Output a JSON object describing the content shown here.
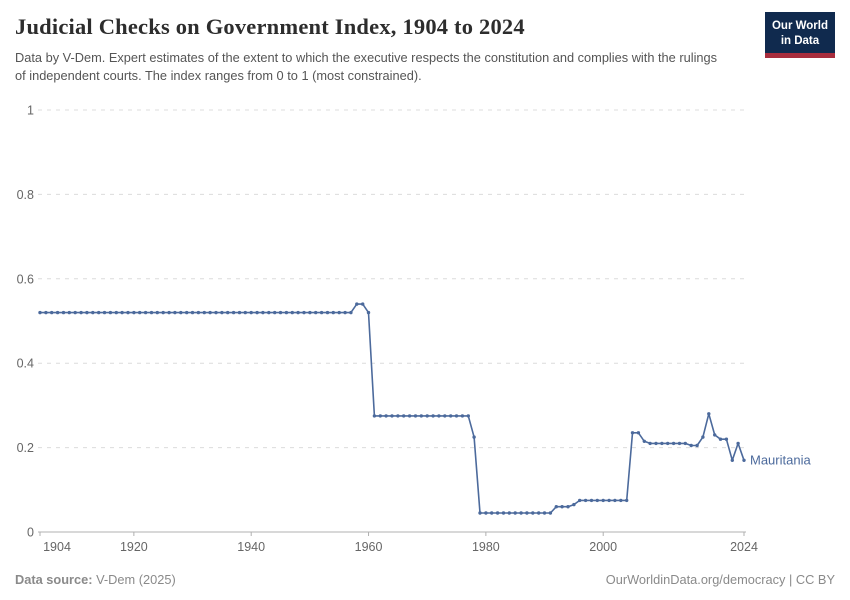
{
  "header": {
    "title": "Judicial Checks on Government Index, 1904 to 2024",
    "subtitle": "Data by V-Dem. Expert estimates of the extent to which the executive respects the constitution and complies with the rulings of independent courts. The index ranges from 0 to 1 (most constrained)."
  },
  "logo": {
    "line1": "Our World",
    "line2": "in Data",
    "bg_color": "#102a4e",
    "bar_color": "#a82d3d"
  },
  "footer": {
    "data_source_label": "Data source:",
    "data_source_value": " V-Dem (2025)",
    "credit": "OurWorldinData.org/democracy | CC BY"
  },
  "chart_data": {
    "type": "line",
    "title": "Judicial Checks on Government Index, 1904 to 2024",
    "xlabel": "",
    "ylabel": "",
    "xlim": [
      1904,
      2024
    ],
    "ylim": [
      0,
      1
    ],
    "grid": "horizontal dashed",
    "grid_color": "#dcdcdc",
    "axis_color": "#b0b0b0",
    "tick_label_color": "#666666",
    "legend_position": "end-of-line label",
    "yticks": [
      0,
      0.2,
      0.4,
      0.6,
      0.8,
      1
    ],
    "ytick_labels": [
      "0",
      "0.2",
      "0.4",
      "0.6",
      "0.8",
      "1"
    ],
    "xticks": [
      1904,
      1920,
      1940,
      1960,
      1980,
      2000,
      2024
    ],
    "xtick_labels": [
      "1904",
      "1920",
      "1940",
      "1960",
      "1980",
      "2000",
      "2024"
    ],
    "series": [
      {
        "name": "Mauritania",
        "color": "#4C6A9C",
        "x": {
          "start": 1904,
          "end": 2024,
          "step": 1
        },
        "values": [
          0.52,
          0.52,
          0.52,
          0.52,
          0.52,
          0.52,
          0.52,
          0.52,
          0.52,
          0.52,
          0.52,
          0.52,
          0.52,
          0.52,
          0.52,
          0.52,
          0.52,
          0.52,
          0.52,
          0.52,
          0.52,
          0.52,
          0.52,
          0.52,
          0.52,
          0.52,
          0.52,
          0.52,
          0.52,
          0.52,
          0.52,
          0.52,
          0.52,
          0.52,
          0.52,
          0.52,
          0.52,
          0.52,
          0.52,
          0.52,
          0.52,
          0.52,
          0.52,
          0.52,
          0.52,
          0.52,
          0.52,
          0.52,
          0.52,
          0.52,
          0.52,
          0.52,
          0.52,
          0.52,
          0.54,
          0.54,
          0.52,
          0.275,
          0.275,
          0.275,
          0.275,
          0.275,
          0.275,
          0.275,
          0.275,
          0.275,
          0.275,
          0.275,
          0.275,
          0.275,
          0.275,
          0.275,
          0.275,
          0.275,
          0.225,
          0.045,
          0.045,
          0.045,
          0.045,
          0.045,
          0.045,
          0.045,
          0.045,
          0.045,
          0.045,
          0.045,
          0.045,
          0.045,
          0.06,
          0.06,
          0.06,
          0.065,
          0.075,
          0.075,
          0.075,
          0.075,
          0.075,
          0.075,
          0.075,
          0.075,
          0.075,
          0.235,
          0.235,
          0.215,
          0.21,
          0.21,
          0.21,
          0.21,
          0.21,
          0.21,
          0.21,
          0.205,
          0.205,
          0.225,
          0.28,
          0.23,
          0.22,
          0.22,
          0.17,
          0.21,
          0.17
        ]
      }
    ]
  }
}
